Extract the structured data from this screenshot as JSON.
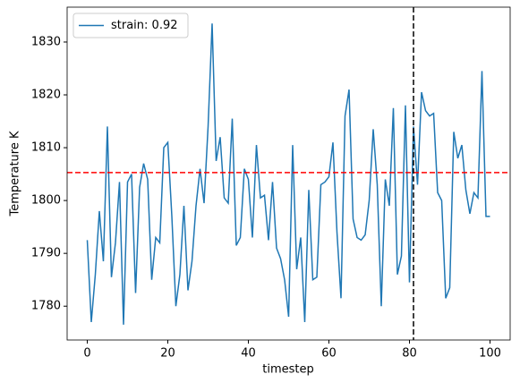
{
  "chart_data": {
    "type": "line",
    "x_label": "timestep",
    "y_label": "Temperature K",
    "x": [
      0,
      1,
      2,
      3,
      4,
      5,
      6,
      7,
      8,
      9,
      10,
      11,
      12,
      13,
      14,
      15,
      16,
      17,
      18,
      19,
      20,
      21,
      22,
      23,
      24,
      25,
      26,
      27,
      28,
      29,
      30,
      31,
      32,
      33,
      34,
      35,
      36,
      37,
      38,
      39,
      40,
      41,
      42,
      43,
      44,
      45,
      46,
      47,
      48,
      49,
      50,
      51,
      52,
      53,
      54,
      55,
      56,
      57,
      58,
      59,
      60,
      61,
      62,
      63,
      64,
      65,
      66,
      67,
      68,
      69,
      70,
      71,
      72,
      73,
      74,
      75,
      76,
      77,
      78,
      79,
      80,
      81,
      82,
      83,
      84,
      85,
      86,
      87,
      88,
      89,
      90,
      91,
      92,
      93,
      94,
      95,
      96,
      97,
      98,
      99,
      100
    ],
    "series": [
      {
        "name": "strain: 0.92",
        "color": "#1f77b4",
        "values": [
          1792.5,
          1777,
          1786,
          1798,
          1788.5,
          1814,
          1785.5,
          1792,
          1803.5,
          1776.5,
          1803.5,
          1805,
          1782.5,
          1802.5,
          1807,
          1804,
          1785,
          1793,
          1792,
          1810,
          1811,
          1797,
          1780,
          1786,
          1799,
          1783,
          1788.5,
          1799,
          1806,
          1799.5,
          1814,
          1833.5,
          1807.5,
          1812,
          1800.5,
          1799.5,
          1815.5,
          1791.5,
          1793,
          1806,
          1804,
          1793,
          1810.5,
          1800.5,
          1801,
          1792.5,
          1803.5,
          1791,
          1789,
          1785,
          1778,
          1810.5,
          1787,
          1793,
          1777,
          1802,
          1785,
          1785.5,
          1803,
          1803.5,
          1804.5,
          1811,
          1794,
          1781.5,
          1816,
          1821,
          1796.5,
          1793,
          1792.5,
          1793.5,
          1800,
          1813.5,
          1803,
          1780,
          1804,
          1799,
          1817.5,
          1786,
          1789.5,
          1818,
          1784.5,
          1814,
          1803,
          1820.5,
          1817,
          1816,
          1816.5,
          1801.5,
          1800,
          1781.5,
          1783.5,
          1813,
          1808,
          1810.5,
          1802,
          1797.5,
          1801.5,
          1800.5,
          1824.5,
          1797,
          1797
        ]
      }
    ],
    "hline": {
      "value": 1805.3,
      "color": "#ff0000"
    },
    "vline": {
      "value": 81,
      "color": "#000000"
    },
    "xlim": [
      -5,
      105
    ],
    "xticks": [
      0,
      20,
      40,
      60,
      80,
      100
    ],
    "ylim": [
      1773.6,
      1836.6
    ],
    "yticks": [
      1780,
      1790,
      1800,
      1810,
      1820,
      1830
    ],
    "legend": "upper left"
  }
}
